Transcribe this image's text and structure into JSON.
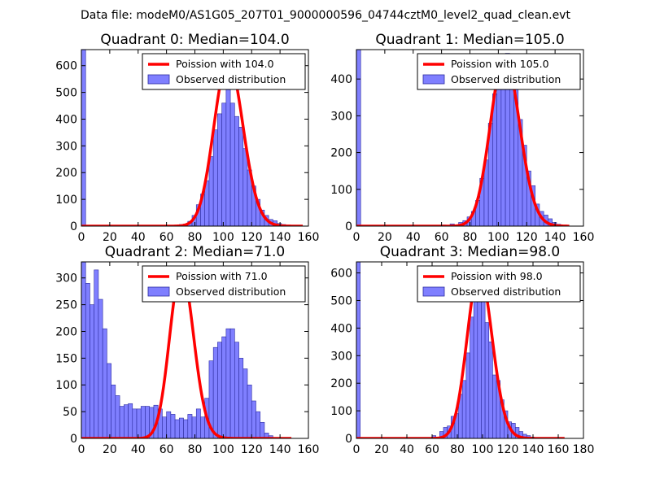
{
  "suptitle": "Data file: modeM0/AS1G05_207T01_9000000596_04744cztM0_level2_quad_clean.evt",
  "colors": {
    "hist": "#7f7fff",
    "hist_edge": "#2c2ca0",
    "curve": "#ff0000"
  },
  "chart_data": [
    {
      "type": "bar",
      "title": "Quadrant 0: Median=104.0",
      "bin_width": 3,
      "xlim": [
        0,
        160
      ],
      "ylim": [
        0,
        660
      ],
      "xticks": [
        0,
        20,
        40,
        60,
        80,
        100,
        120,
        140,
        160
      ],
      "yticks": [
        0,
        100,
        200,
        300,
        400,
        500,
        600
      ],
      "legend": [
        "Poission with 104.0",
        "Observed distribution"
      ],
      "poisson_mean": 104,
      "curve_xmax": 156,
      "curve_peak": 620,
      "histogram": [
        [
          0,
          660
        ],
        [
          66,
          3
        ],
        [
          69,
          6
        ],
        [
          72,
          8
        ],
        [
          75,
          18
        ],
        [
          78,
          40
        ],
        [
          81,
          80
        ],
        [
          84,
          120
        ],
        [
          87,
          170
        ],
        [
          90,
          260
        ],
        [
          93,
          360
        ],
        [
          96,
          420
        ],
        [
          99,
          460
        ],
        [
          102,
          640
        ],
        [
          105,
          460
        ],
        [
          108,
          410
        ],
        [
          111,
          370
        ],
        [
          114,
          290
        ],
        [
          117,
          210
        ],
        [
          120,
          150
        ],
        [
          123,
          100
        ],
        [
          126,
          60
        ],
        [
          129,
          40
        ],
        [
          132,
          25
        ],
        [
          135,
          20
        ],
        [
          138,
          10
        ],
        [
          141,
          6
        ],
        [
          144,
          3
        ]
      ]
    },
    {
      "type": "bar",
      "title": "Quadrant 1: Median=105.0",
      "bin_width": 3,
      "xlim": [
        0,
        160
      ],
      "ylim": [
        0,
        480
      ],
      "xticks": [
        0,
        20,
        40,
        60,
        80,
        100,
        120,
        140,
        160
      ],
      "yticks": [
        0,
        100,
        200,
        300,
        400
      ],
      "legend": [
        "Poission with 105.0",
        "Observed distribution"
      ],
      "poisson_mean": 105,
      "curve_xmax": 150,
      "curve_peak": 460,
      "histogram": [
        [
          0,
          480
        ],
        [
          60,
          3
        ],
        [
          66,
          6
        ],
        [
          72,
          10
        ],
        [
          75,
          15
        ],
        [
          78,
          25
        ],
        [
          81,
          40
        ],
        [
          84,
          70
        ],
        [
          87,
          130
        ],
        [
          90,
          180
        ],
        [
          93,
          280
        ],
        [
          96,
          360
        ],
        [
          99,
          400
        ],
        [
          102,
          440
        ],
        [
          105,
          470
        ],
        [
          108,
          420
        ],
        [
          111,
          380
        ],
        [
          114,
          290
        ],
        [
          117,
          220
        ],
        [
          120,
          150
        ],
        [
          123,
          110
        ],
        [
          126,
          60
        ],
        [
          129,
          40
        ],
        [
          132,
          30
        ],
        [
          135,
          20
        ],
        [
          138,
          10
        ],
        [
          141,
          5
        ]
      ]
    },
    {
      "type": "bar",
      "title": "Quadrant 2: Median=71.0",
      "bin_width": 3,
      "xlim": [
        0,
        160
      ],
      "ylim": [
        0,
        330
      ],
      "xticks": [
        0,
        20,
        40,
        60,
        80,
        100,
        120,
        140,
        160
      ],
      "yticks": [
        0,
        50,
        100,
        150,
        200,
        250,
        300
      ],
      "legend": [
        "Poission with 71.0",
        "Observed distribution"
      ],
      "poisson_mean": 71,
      "curve_xmax": 148,
      "curve_peak": 315,
      "histogram": [
        [
          0,
          330
        ],
        [
          3,
          290
        ],
        [
          6,
          250
        ],
        [
          9,
          315
        ],
        [
          12,
          260
        ],
        [
          15,
          205
        ],
        [
          18,
          140
        ],
        [
          21,
          100
        ],
        [
          24,
          80
        ],
        [
          27,
          60
        ],
        [
          30,
          63
        ],
        [
          33,
          65
        ],
        [
          36,
          55
        ],
        [
          39,
          55
        ],
        [
          42,
          60
        ],
        [
          45,
          60
        ],
        [
          48,
          58
        ],
        [
          51,
          62
        ],
        [
          54,
          55
        ],
        [
          57,
          40
        ],
        [
          60,
          50
        ],
        [
          63,
          45
        ],
        [
          66,
          35
        ],
        [
          69,
          38
        ],
        [
          72,
          35
        ],
        [
          75,
          45
        ],
        [
          78,
          40
        ],
        [
          81,
          55
        ],
        [
          84,
          40
        ],
        [
          87,
          75
        ],
        [
          90,
          145
        ],
        [
          93,
          170
        ],
        [
          96,
          180
        ],
        [
          99,
          190
        ],
        [
          102,
          205
        ],
        [
          105,
          205
        ],
        [
          108,
          180
        ],
        [
          111,
          150
        ],
        [
          114,
          130
        ],
        [
          117,
          100
        ],
        [
          120,
          70
        ],
        [
          123,
          50
        ],
        [
          126,
          30
        ],
        [
          129,
          10
        ],
        [
          132,
          5
        ]
      ]
    },
    {
      "type": "bar",
      "title": "Quadrant 3: Median=98.0",
      "bin_width": 3,
      "xlim": [
        0,
        180
      ],
      "ylim": [
        0,
        640
      ],
      "xticks": [
        0,
        20,
        40,
        60,
        80,
        100,
        120,
        140,
        160,
        180
      ],
      "yticks": [
        0,
        100,
        200,
        300,
        400,
        500,
        600
      ],
      "legend": [
        "Poission with 98.0",
        "Observed distribution"
      ],
      "poisson_mean": 98,
      "curve_xmax": 165,
      "curve_peak": 605,
      "histogram": [
        [
          0,
          640
        ],
        [
          60,
          10
        ],
        [
          66,
          25
        ],
        [
          69,
          40
        ],
        [
          72,
          45
        ],
        [
          75,
          80
        ],
        [
          78,
          90
        ],
        [
          81,
          160
        ],
        [
          84,
          210
        ],
        [
          87,
          310
        ],
        [
          90,
          440
        ],
        [
          93,
          540
        ],
        [
          96,
          600
        ],
        [
          99,
          510
        ],
        [
          102,
          420
        ],
        [
          105,
          350
        ],
        [
          108,
          230
        ],
        [
          111,
          210
        ],
        [
          114,
          140
        ],
        [
          117,
          100
        ],
        [
          120,
          60
        ],
        [
          123,
          55
        ],
        [
          126,
          40
        ],
        [
          129,
          25
        ],
        [
          132,
          15
        ],
        [
          135,
          10
        ],
        [
          138,
          5
        ]
      ]
    }
  ]
}
